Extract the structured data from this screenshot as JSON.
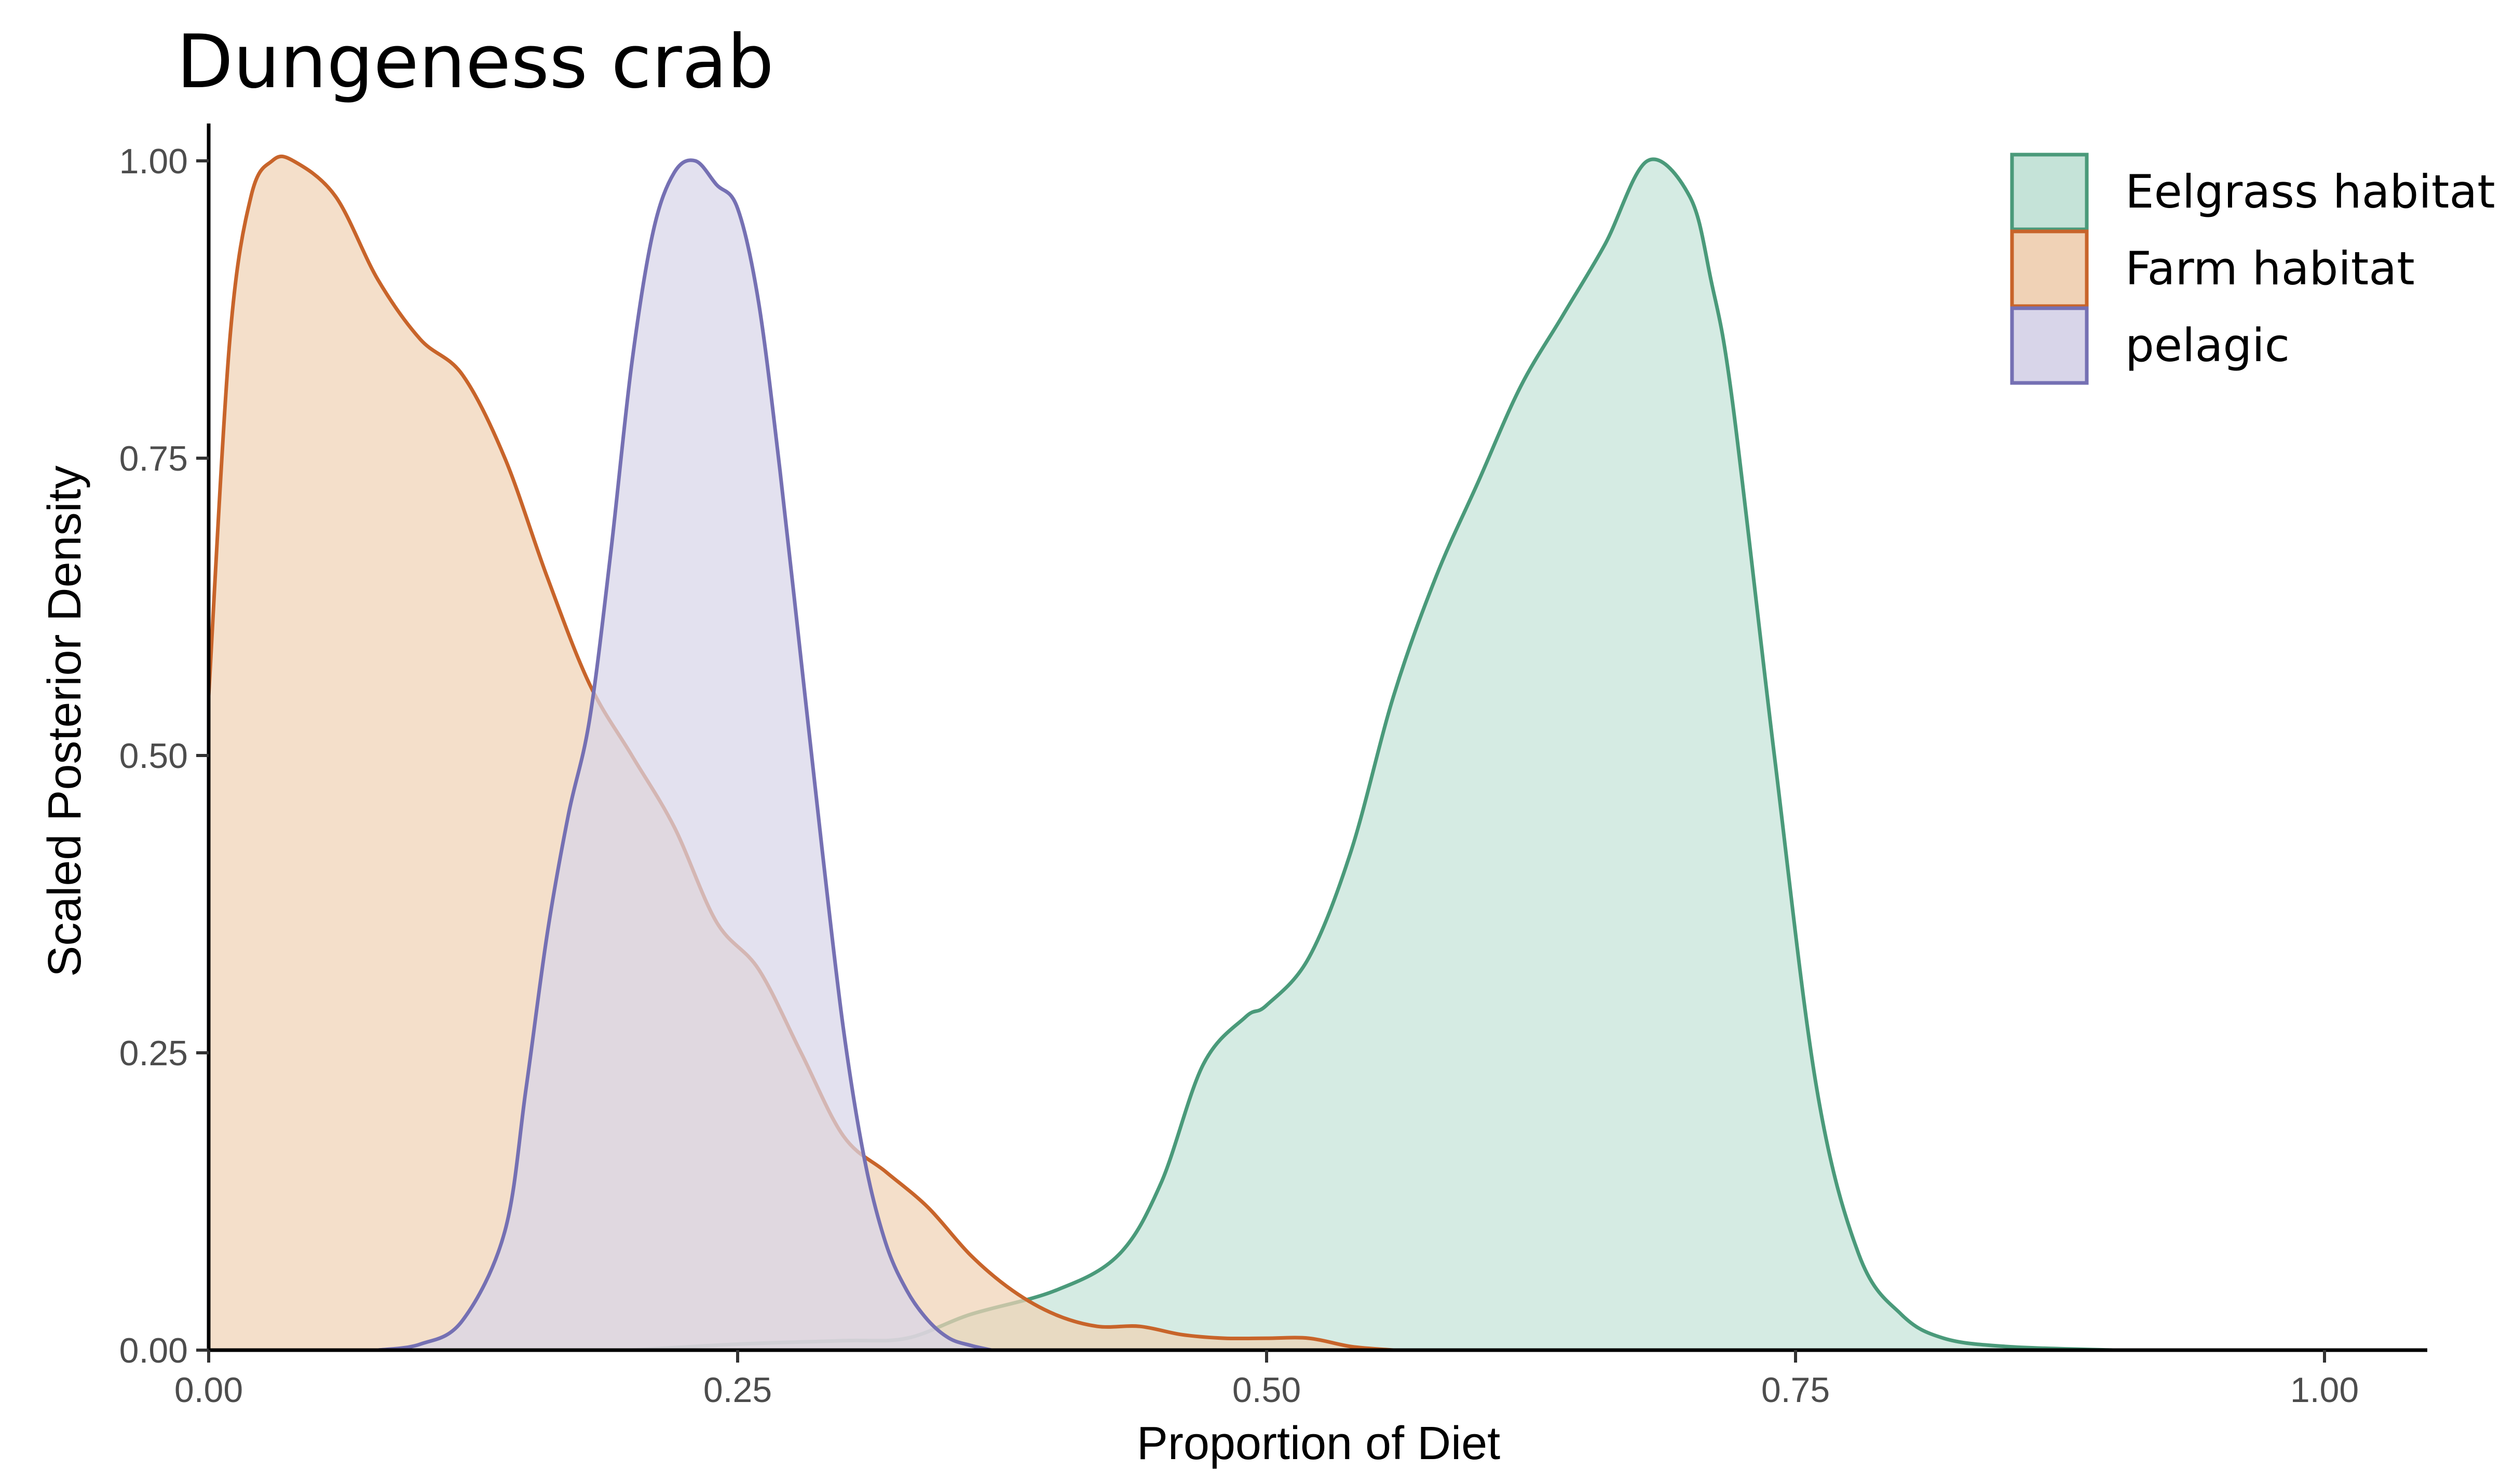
{
  "chart_data": {
    "type": "area",
    "title": "Dungeness crab",
    "xlabel": "Proportion of Diet",
    "ylabel": "Scaled Posterior Density",
    "xlim": [
      0,
      1.05
    ],
    "ylim": [
      0,
      1.03
    ],
    "x_ticks": [
      0,
      0.25,
      0.5,
      0.75,
      1
    ],
    "x_tick_labels": [
      "0.00",
      "0.25",
      "0.50",
      "0.75",
      "1.00"
    ],
    "y_ticks": [
      0,
      0.25,
      0.5,
      0.75,
      1
    ],
    "y_tick_labels": [
      "0.00",
      "0.25",
      "0.50",
      "0.75",
      "1.00"
    ],
    "grid": false,
    "legend_position": "top-right",
    "series": [
      {
        "name": "Eelgrass habitat",
        "line_color": "#4a9a7a",
        "fill_color": "#c5e3d8",
        "x": [
          0.2,
          0.25,
          0.3,
          0.33,
          0.36,
          0.4,
          0.43,
          0.45,
          0.47,
          0.49,
          0.5,
          0.52,
          0.54,
          0.56,
          0.58,
          0.6,
          0.62,
          0.64,
          0.66,
          0.68,
          0.7,
          0.71,
          0.72,
          0.74,
          0.76,
          0.78,
          0.8,
          0.82,
          0.85,
          0.9
        ],
        "y": [
          0,
          0.005,
          0.008,
          0.01,
          0.03,
          0.05,
          0.08,
          0.14,
          0.24,
          0.28,
          0.29,
          0.33,
          0.42,
          0.55,
          0.65,
          0.73,
          0.81,
          0.87,
          0.93,
          1.0,
          0.97,
          0.9,
          0.8,
          0.5,
          0.22,
          0.08,
          0.03,
          0.01,
          0.003,
          0
        ]
      },
      {
        "name": "Farm habitat",
        "line_color": "#c8642a",
        "fill_color": "#f0d2b6",
        "x": [
          0,
          0.01,
          0.02,
          0.03,
          0.04,
          0.06,
          0.08,
          0.1,
          0.12,
          0.14,
          0.16,
          0.18,
          0.2,
          0.22,
          0.24,
          0.26,
          0.28,
          0.3,
          0.32,
          0.34,
          0.36,
          0.38,
          0.4,
          0.42,
          0.44,
          0.46,
          0.48,
          0.5,
          0.52,
          0.54,
          0.56
        ],
        "y": [
          0.55,
          0.85,
          0.97,
          1.0,
          1.0,
          0.97,
          0.9,
          0.85,
          0.82,
          0.75,
          0.65,
          0.56,
          0.5,
          0.44,
          0.36,
          0.32,
          0.25,
          0.18,
          0.15,
          0.12,
          0.08,
          0.05,
          0.03,
          0.02,
          0.02,
          0.013,
          0.01,
          0.01,
          0.01,
          0.003,
          0
        ]
      },
      {
        "name": "pelagic",
        "line_color": "#7570b3",
        "fill_color": "#d8d5e9",
        "x": [
          0.08,
          0.1,
          0.12,
          0.14,
          0.15,
          0.16,
          0.17,
          0.18,
          0.19,
          0.2,
          0.21,
          0.22,
          0.23,
          0.24,
          0.25,
          0.26,
          0.27,
          0.28,
          0.29,
          0.3,
          0.31,
          0.32,
          0.33,
          0.34,
          0.35,
          0.36,
          0.37
        ],
        "y": [
          0,
          0.005,
          0.025,
          0.1,
          0.22,
          0.35,
          0.45,
          0.53,
          0.67,
          0.83,
          0.94,
          0.99,
          1.0,
          0.98,
          0.96,
          0.88,
          0.74,
          0.58,
          0.42,
          0.27,
          0.16,
          0.09,
          0.05,
          0.025,
          0.01,
          0.004,
          0
        ]
      }
    ]
  }
}
